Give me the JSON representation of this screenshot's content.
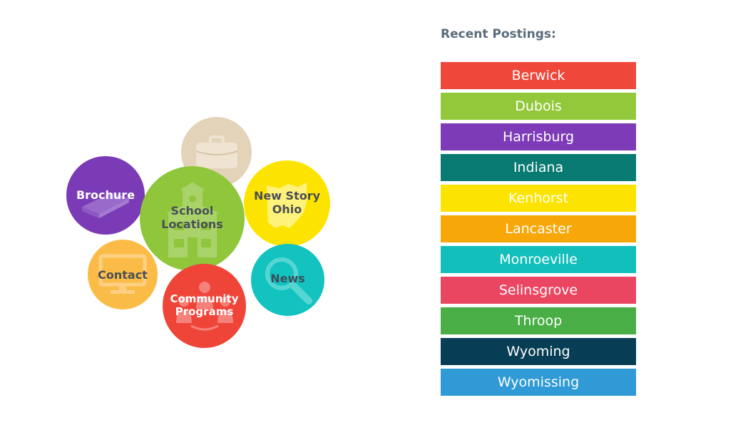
{
  "bubbles": {
    "briefcase": {
      "label": "",
      "icon": "briefcase-icon",
      "color": "#e2d3b9"
    },
    "brochure": {
      "label": "Brochure",
      "icon": "book-icon",
      "color": "#7b3bb6"
    },
    "school": {
      "label": "School\nLocations",
      "icon": "schoolhouse-icon",
      "color": "#8fc63b"
    },
    "newstory": {
      "label": "New Story\nOhio",
      "icon": "ohio-map-icon",
      "color": "#fde400"
    },
    "contact": {
      "label": "Contact",
      "icon": "monitor-icon",
      "color": "#fbbc47"
    },
    "news": {
      "label": "News",
      "icon": "magnifier-icon",
      "color": "#12c3c0"
    },
    "community": {
      "label": "Community\nPrograms",
      "icon": "people-icon",
      "color": "#ef4438"
    }
  },
  "postings": {
    "title": "Recent Postings:",
    "items": [
      {
        "label": "Berwick",
        "color": "#f0473b"
      },
      {
        "label": "Dubois",
        "color": "#94c83b"
      },
      {
        "label": "Harrisburg",
        "color": "#7d3bb8"
      },
      {
        "label": "Indiana",
        "color": "#087a72"
      },
      {
        "label": "Kenhorst",
        "color": "#fde400"
      },
      {
        "label": "Lancaster",
        "color": "#f8a709"
      },
      {
        "label": "Monroeville",
        "color": "#12bfbb"
      },
      {
        "label": "Selinsgrove",
        "color": "#ea4662"
      },
      {
        "label": "Throop",
        "color": "#48ae45"
      },
      {
        "label": "Wyoming",
        "color": "#083e55"
      },
      {
        "label": "Wyomissing",
        "color": "#2f9ad6"
      }
    ]
  }
}
